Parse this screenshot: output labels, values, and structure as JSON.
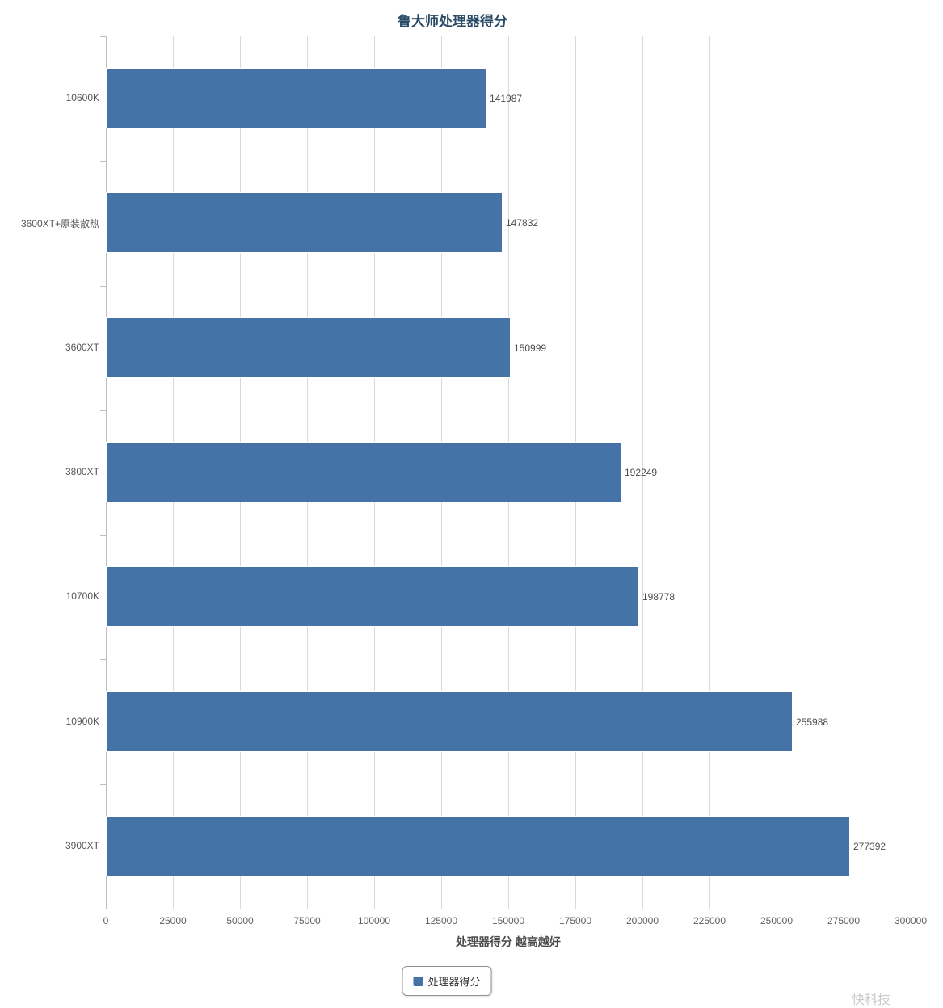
{
  "chart_data": {
    "type": "bar",
    "orientation": "horizontal",
    "title": "鲁大师处理器得分",
    "categories": [
      "10600K",
      "3600XT+原装散热",
      "3600XT",
      "3800XT",
      "10700K",
      "10900K",
      "3900XT"
    ],
    "values": [
      141987,
      147832,
      150999,
      192249,
      198778,
      255988,
      277392
    ],
    "value_labels": [
      "141987",
      "147832",
      "150999",
      "192249",
      "198778",
      "255988",
      "277392"
    ],
    "xlabel": "处理器得分 越高越好",
    "ylabel": "",
    "xlim": [
      0,
      300000
    ],
    "xtick_step": 25000,
    "xticks": [
      "0",
      "25000",
      "50000",
      "75000",
      "100000",
      "125000",
      "150000",
      "175000",
      "200000",
      "225000",
      "250000",
      "275000",
      "300000"
    ],
    "grid": true,
    "legend": [
      "处理器得分"
    ],
    "legend_position": "bottom"
  },
  "colors": {
    "bar": "#4572a7",
    "grid": "#d9d9d9",
    "axis": "#c0c0c0",
    "title": "#294a66",
    "tick_label": "#606060",
    "category_label": "#555555",
    "value_label": "#4d4d4d"
  },
  "watermark": "快科技"
}
